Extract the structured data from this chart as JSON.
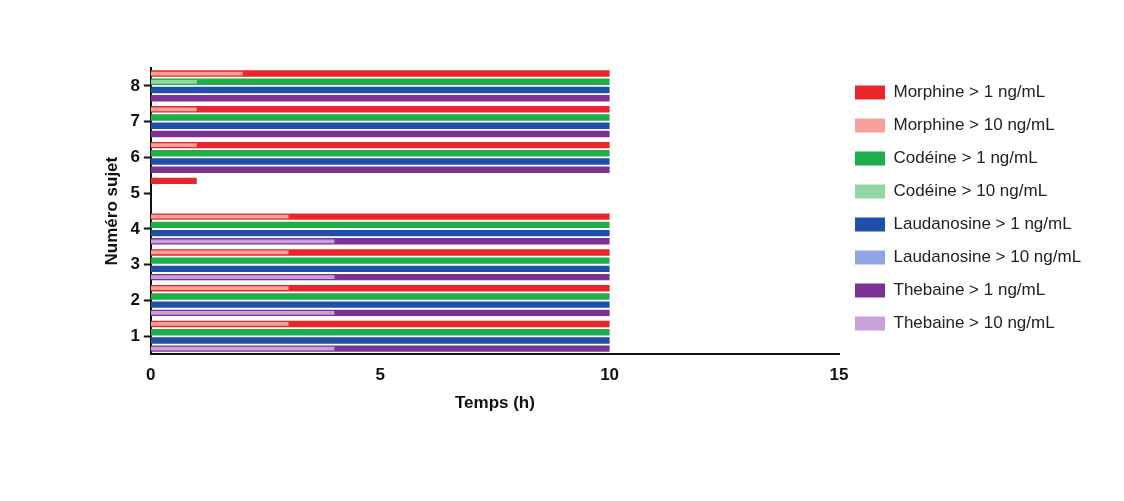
{
  "chart_data": {
    "type": "bar",
    "orientation": "horizontal",
    "xlabel": "Temps (h)",
    "ylabel": "Numéro sujet",
    "categories": [
      "8",
      "7",
      "6",
      "5",
      "4",
      "3",
      "2",
      "1"
    ],
    "xlim": [
      0,
      15
    ],
    "xticks": [
      0,
      5,
      10,
      15
    ],
    "grid": false,
    "legend": "right",
    "series": [
      {
        "name": "Morphine > 1 ng/mL",
        "color": "#e8262b",
        "values": [
          10,
          10,
          10,
          1,
          10,
          10,
          10,
          10
        ]
      },
      {
        "name": "Morphine > 10 ng/mL",
        "color": "#f4a09c",
        "values": [
          2,
          1,
          1,
          null,
          3,
          3,
          3,
          3
        ]
      },
      {
        "name": "Codéine > 1 ng/mL",
        "color": "#1fae4b",
        "values": [
          10,
          10,
          10,
          null,
          10,
          10,
          10,
          10
        ]
      },
      {
        "name": "Codéine > 10 ng/mL",
        "color": "#93d6a4",
        "values": [
          1,
          null,
          null,
          null,
          null,
          null,
          null,
          null
        ]
      },
      {
        "name": "Laudanosine > 1 ng/mL",
        "color": "#1f4fa8",
        "values": [
          10,
          10,
          10,
          null,
          10,
          10,
          10,
          10
        ]
      },
      {
        "name": "Laudanosine > 10 ng/mL",
        "color": "#8fa6e0",
        "values": [
          null,
          null,
          null,
          null,
          null,
          null,
          null,
          null
        ]
      },
      {
        "name": "Thebaine > 1 ng/mL",
        "color": "#7b3294",
        "values": [
          10,
          10,
          10,
          null,
          10,
          10,
          10,
          10
        ]
      },
      {
        "name": "Thebaine > 10 ng/mL",
        "color": "#c9a0dc",
        "values": [
          null,
          null,
          null,
          null,
          4,
          4,
          4,
          4
        ]
      }
    ]
  }
}
